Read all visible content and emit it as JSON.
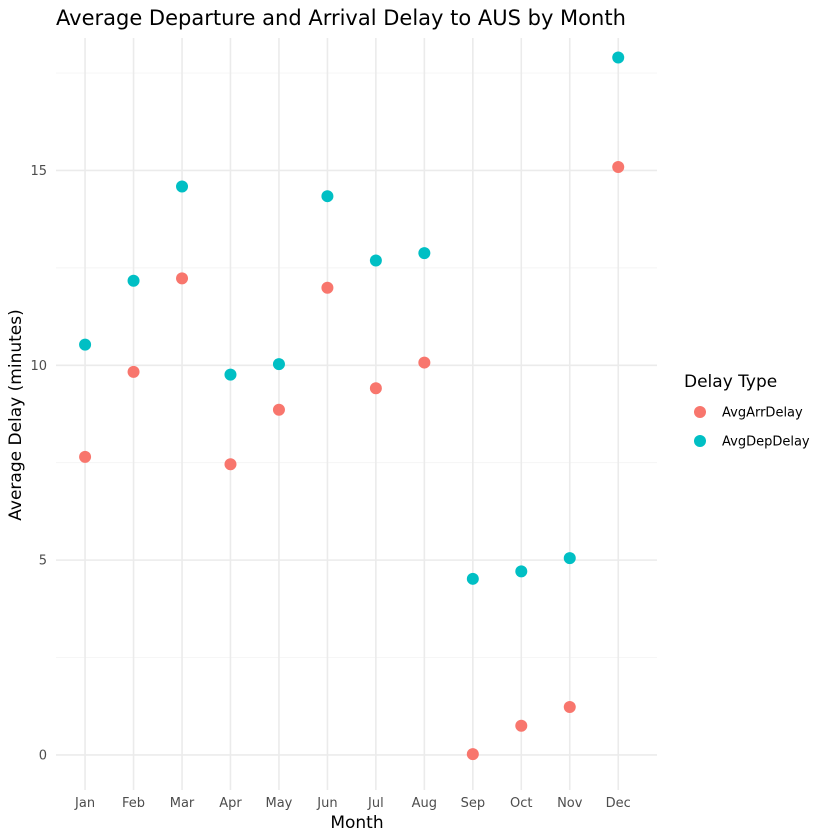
{
  "chart_data": {
    "type": "scatter",
    "title": "Average Departure and Arrival Delay to AUS by Month",
    "xlabel": "Month",
    "ylabel": "Average Delay (minutes)",
    "categories": [
      "Jan",
      "Feb",
      "Mar",
      "Apr",
      "May",
      "Jun",
      "Jul",
      "Aug",
      "Sep",
      "Oct",
      "Nov",
      "Dec"
    ],
    "ylim": [
      -0.9,
      18.4
    ],
    "yticks": [
      0,
      5,
      10,
      15
    ],
    "yticklabels": [
      "0",
      "5",
      "10",
      "15"
    ],
    "grid": true,
    "legend": {
      "title": "Delay Type",
      "placement": "right"
    },
    "series": [
      {
        "name": "AvgArrDelay",
        "color": "#F8766D",
        "values": [
          7.65,
          9.83,
          12.23,
          7.46,
          8.86,
          11.99,
          9.41,
          10.07,
          0.02,
          0.75,
          1.23,
          15.09
        ]
      },
      {
        "name": "AvgDepDelay",
        "color": "#00BFC4",
        "values": [
          10.53,
          12.17,
          14.59,
          9.76,
          10.03,
          14.34,
          12.69,
          12.88,
          4.52,
          4.71,
          5.05,
          17.9
        ]
      }
    ]
  }
}
